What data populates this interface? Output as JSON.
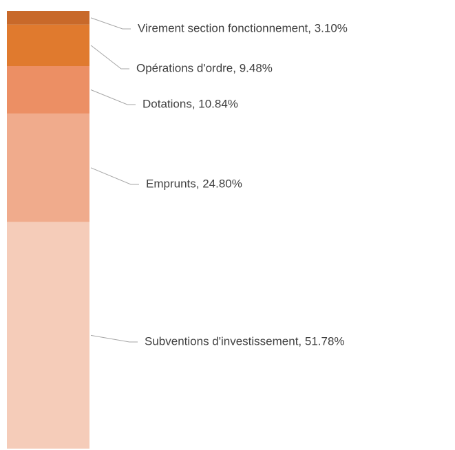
{
  "chart_data": {
    "type": "bar",
    "stacked": true,
    "ylim": [
      0,
      100
    ],
    "series": [
      {
        "color": "#f5ccb9",
        "values": [
          51.78
        ],
        "value_labels": [
          "Subventions d'investissement, 51.78%"
        ]
      },
      {
        "color": "#f0ab8c",
        "values": [
          24.8
        ],
        "value_labels": [
          "Emprunts, 24.80%"
        ]
      },
      {
        "color": "#ec8f64",
        "values": [
          10.84
        ],
        "value_labels": [
          "Dotations, 10.84%"
        ]
      },
      {
        "color": "#e07a2e",
        "values": [
          9.48
        ],
        "value_labels": [
          "Opérations d'ordre, 9.48%"
        ]
      },
      {
        "color": "#c8692a",
        "values": [
          3.1
        ],
        "value_labels": [
          "Virement section fonctionnement, 3.10%"
        ]
      }
    ]
  }
}
